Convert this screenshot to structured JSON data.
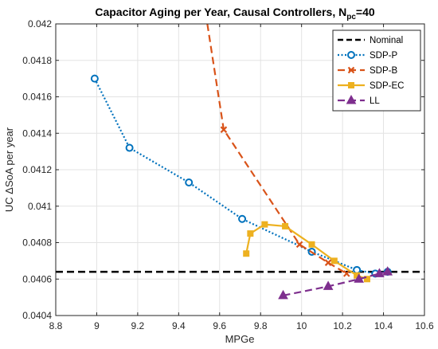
{
  "chart_data": {
    "type": "line",
    "title_main": "Capacitor Aging per Year, Causal Controllers, N",
    "title_sub": "pc",
    "title_tail": "=40",
    "xlabel": "MPGe",
    "ylabel": "UC ΔSoA per year",
    "xlim": [
      8.8,
      10.6
    ],
    "ylim": [
      0.0404,
      0.042
    ],
    "xticks": [
      8.8,
      9,
      9.2,
      9.4,
      9.6,
      9.8,
      10,
      10.2,
      10.4,
      10.6
    ],
    "xtick_labels": [
      "8.8",
      "9",
      "9.2",
      "9.4",
      "9.6",
      "9.8",
      "10",
      "10.2",
      "10.4",
      "10.6"
    ],
    "yticks": [
      0.0404,
      0.0406,
      0.0408,
      0.041,
      0.0412,
      0.0414,
      0.0416,
      0.0418,
      0.042
    ],
    "ytick_labels": [
      "0.0404",
      "0.0406",
      "0.0408",
      "0.041",
      "0.0412",
      "0.0414",
      "0.0416",
      "0.0418",
      "0.042"
    ],
    "grid": true,
    "legend_position": "top-right",
    "series": [
      {
        "name": "Nominal",
        "color": "#000000",
        "dash": "dashed",
        "marker": "none",
        "x": [
          8.8,
          10.6
        ],
        "y": [
          0.04064,
          0.04064
        ]
      },
      {
        "name": "SDP-P",
        "color": "#0072BD",
        "dash": "dotted",
        "marker": "circle",
        "x": [
          8.99,
          9.16,
          9.45,
          9.71,
          10.05,
          10.27,
          10.36,
          10.42
        ],
        "y": [
          0.0417,
          0.04132,
          0.04113,
          0.04093,
          0.04075,
          0.04065,
          0.04063,
          0.04064
        ]
      },
      {
        "name": "SDP-B",
        "color": "#D95319",
        "dash": "dashed",
        "marker": "x",
        "x": [
          9.54,
          9.62,
          9.99,
          10.13,
          10.22
        ],
        "y": [
          0.042,
          0.04142,
          0.04079,
          0.04069,
          0.04063
        ],
        "marked": [
          false,
          true,
          true,
          true,
          true
        ]
      },
      {
        "name": "SDP-EC",
        "color": "#EDB120",
        "dash": "solid",
        "marker": "square",
        "x": [
          9.73,
          9.75,
          9.82,
          9.92,
          10.05,
          10.16,
          10.27,
          10.32
        ],
        "y": [
          0.04074,
          0.04085,
          0.0409,
          0.04089,
          0.04079,
          0.0407,
          0.04062,
          0.0406
        ]
      },
      {
        "name": "LL",
        "color": "#7E2F8E",
        "dash": "dashed",
        "marker": "triangle",
        "x": [
          9.91,
          10.13,
          10.28,
          10.38,
          10.42
        ],
        "y": [
          0.04051,
          0.04056,
          0.0406,
          0.04063,
          0.04064
        ]
      }
    ]
  }
}
